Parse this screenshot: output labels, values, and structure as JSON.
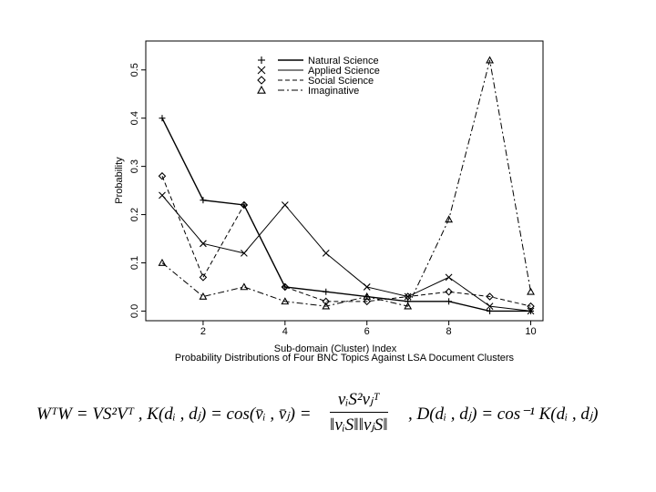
{
  "chart_data": {
    "type": "line",
    "title": "",
    "caption": "Probability Distributions of Four BNC Topics Against LSA Document Clusters",
    "xlabel": "Sub-domain (Cluster) Index",
    "ylabel": "Probability",
    "x": [
      1,
      2,
      3,
      4,
      5,
      6,
      7,
      8,
      9,
      10
    ],
    "x_ticks": [
      "2",
      "4",
      "6",
      "8",
      "10"
    ],
    "y_ticks": [
      "0.0",
      "0.1",
      "0.2",
      "0.3",
      "0.4",
      "0.5"
    ],
    "xlim": [
      0.6,
      10.3
    ],
    "ylim": [
      -0.02,
      0.56
    ],
    "grid": false,
    "legend_position": "top-center",
    "series": [
      {
        "name": "Natural Science",
        "marker": "plus",
        "dash": "solid",
        "values": [
          0.4,
          0.23,
          0.22,
          0.05,
          0.04,
          0.03,
          0.02,
          0.02,
          0.0,
          0.0
        ]
      },
      {
        "name": "Applied Science",
        "marker": "cross",
        "dash": "solid-thin",
        "values": [
          0.24,
          0.14,
          0.12,
          0.22,
          0.12,
          0.05,
          0.03,
          0.07,
          0.01,
          0.0
        ]
      },
      {
        "name": "Social Science",
        "marker": "diamond",
        "dash": "dashed",
        "values": [
          0.28,
          0.07,
          0.22,
          0.05,
          0.02,
          0.02,
          0.03,
          0.04,
          0.03,
          0.01
        ]
      },
      {
        "name": "Imaginative",
        "marker": "triangle",
        "dash": "dotdash",
        "values": [
          0.1,
          0.03,
          0.05,
          0.02,
          0.01,
          0.03,
          0.01,
          0.19,
          0.52,
          0.04
        ]
      }
    ]
  },
  "formula": {
    "part1": "WᵀW = VS²Vᵀ , K(dᵢ , dⱼ) = cos(v̄ᵢ , v̄ⱼ) =",
    "frac_num": "vᵢS²vⱼᵀ",
    "frac_den": "‖vᵢS‖‖vⱼS‖",
    "part2": ", D(dᵢ , dⱼ) = cos⁻¹ K(dᵢ , dⱼ)"
  }
}
